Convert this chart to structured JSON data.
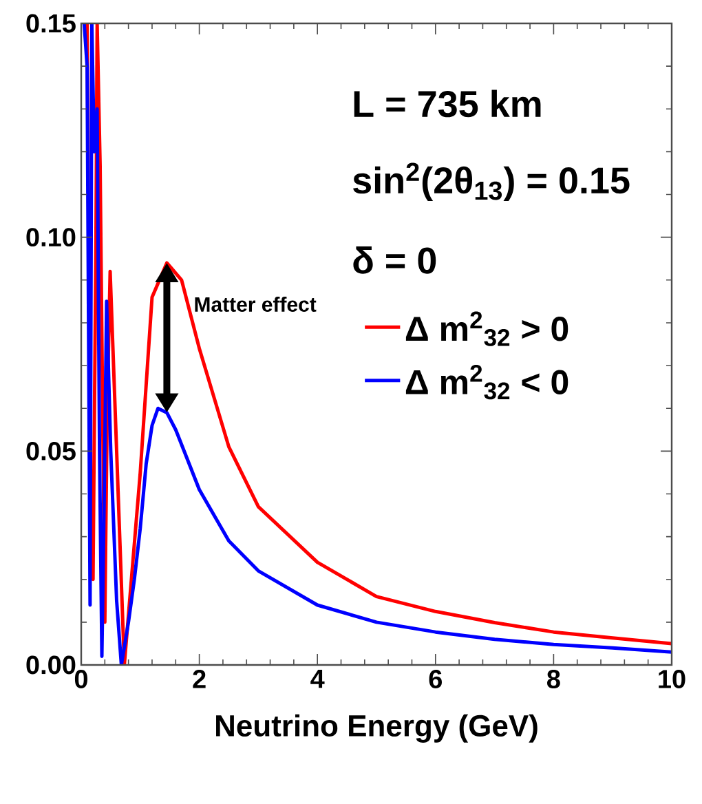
{
  "chart_data": {
    "type": "line",
    "xlabel": "Neutrino Energy (GeV)",
    "xlim": [
      0,
      10
    ],
    "ylim": [
      0,
      0.15
    ],
    "xticks": [
      0,
      2,
      4,
      6,
      8,
      10
    ],
    "yticks": [
      {
        "value": 0,
        "label": "0.00"
      },
      {
        "value": 0.05,
        "label": "0.05"
      },
      {
        "value": 0.1,
        "label": "0.10"
      },
      {
        "value": 0.15,
        "label": "0.15"
      }
    ],
    "legend": "right",
    "series": [
      {
        "name": "Δ m$^{2}$$_{32}$ > 0",
        "color": "#ff0000",
        "x": [
          0.1,
          0.15,
          0.2,
          0.25,
          0.27,
          0.32,
          0.4,
          0.44,
          0.49,
          0.6,
          0.73,
          0.85,
          1.0,
          1.2,
          1.45,
          1.7,
          2.0,
          2.5,
          3.0,
          4.0,
          5.0,
          6.0,
          7.0,
          8.0,
          9.0,
          10.0
        ],
        "values": [
          0.15,
          0.05,
          0.02,
          0.1,
          0.15,
          0.117,
          0.01,
          0.06,
          0.092,
          0.05,
          0.0,
          0.02,
          0.045,
          0.086,
          0.094,
          0.09,
          0.074,
          0.051,
          0.037,
          0.024,
          0.016,
          0.0125,
          0.0099,
          0.0077,
          0.0063,
          0.005
        ]
      },
      {
        "name": "Δ m$^{2}$$_{32}$ < 0",
        "color": "#0000ff",
        "x": [
          0.05,
          0.1,
          0.15,
          0.18,
          0.22,
          0.27,
          0.31,
          0.35,
          0.39,
          0.43,
          0.5,
          0.6,
          0.68,
          0.8,
          0.9,
          1.0,
          1.1,
          1.2,
          1.3,
          1.45,
          1.6,
          2.0,
          2.5,
          3.0,
          4.0,
          5.0,
          6.0,
          7.0,
          8.0,
          9.0,
          10.0
        ],
        "values": [
          0.15,
          0.14,
          0.014,
          0.15,
          0.12,
          0.13,
          0.05,
          0.002,
          0.04,
          0.085,
          0.05,
          0.015,
          0.0,
          0.01,
          0.02,
          0.032,
          0.047,
          0.056,
          0.06,
          0.059,
          0.055,
          0.041,
          0.029,
          0.022,
          0.014,
          0.01,
          0.0077,
          0.006,
          0.0048,
          0.004,
          0.003
        ]
      }
    ],
    "annotations": [
      "L = 735 km",
      "sin$^{2}$(2θ$_{13}$) = 0.15",
      "δ = 0",
      "Matter effect"
    ]
  }
}
